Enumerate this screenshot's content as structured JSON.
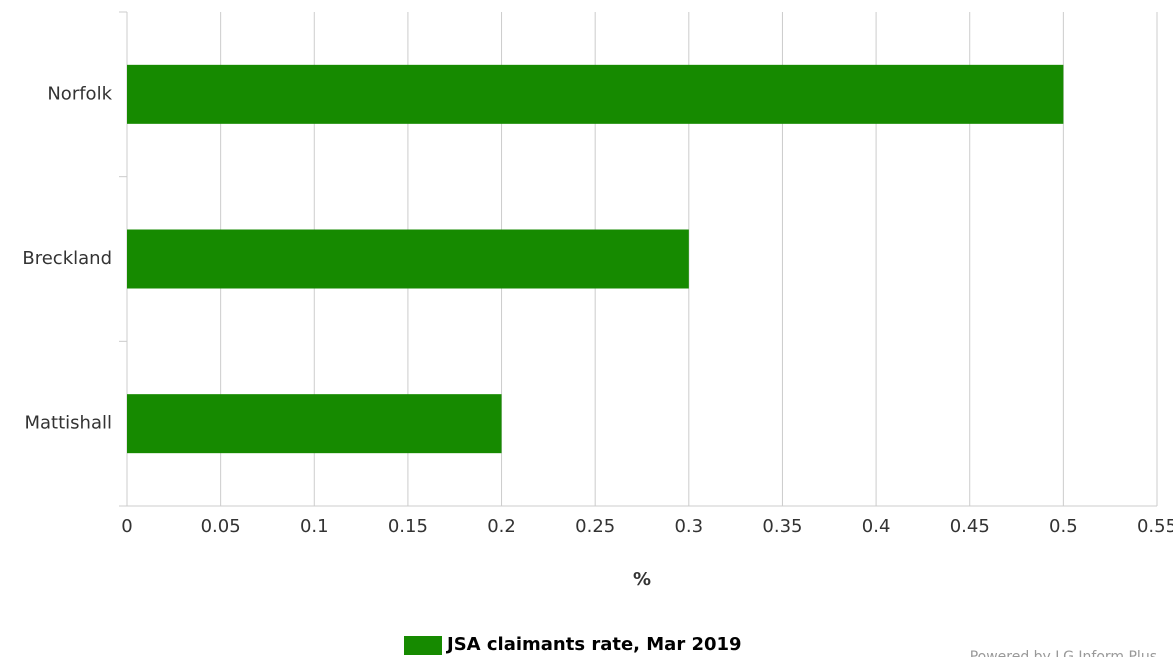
{
  "chart_data": {
    "type": "bar",
    "orientation": "horizontal",
    "categories": [
      "Norfolk",
      "Breckland",
      "Mattishall"
    ],
    "series": [
      {
        "name": "JSA claimants rate, Mar 2019",
        "color": "#168a00",
        "values": [
          0.5,
          0.3,
          0.2
        ]
      }
    ],
    "xlabel": "%",
    "xlim": [
      0,
      0.55
    ],
    "xticks": [
      0,
      0.05,
      0.1,
      0.15,
      0.2,
      0.25,
      0.3,
      0.35,
      0.4,
      0.45,
      0.5,
      0.55
    ],
    "grid": true,
    "legend": "bottom",
    "credit": "Powered by LG Inform Plus"
  }
}
